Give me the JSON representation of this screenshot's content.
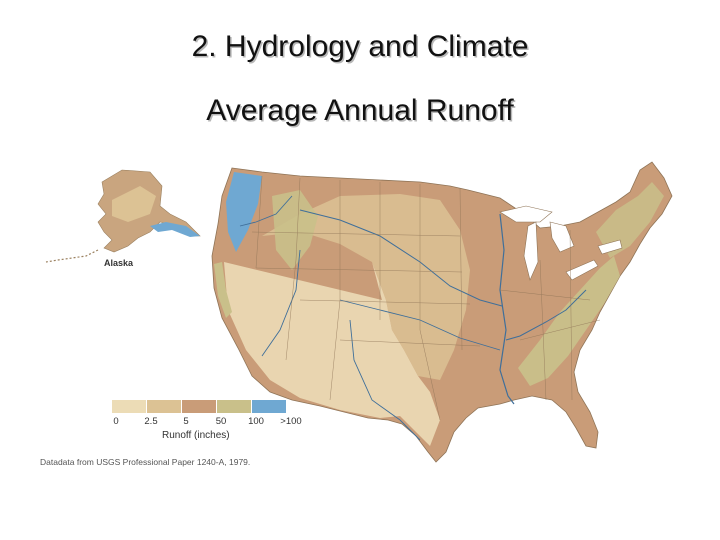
{
  "slide": {
    "title": "2. Hydrology and Climate",
    "subtitle": "Average Annual Runoff"
  },
  "map": {
    "inset_label": "Alaska",
    "source": "Datadata from USGS Professional Paper 1240-A, 1979.",
    "legend": {
      "title": "Runoff (inches)",
      "classes": [
        {
          "color": "#ecdcb6"
        },
        {
          "color": "#dcc294"
        },
        {
          "color": "#c99c78"
        },
        {
          "color": "#c9c08a"
        },
        {
          "color": "#6fa8d2"
        }
      ],
      "ticks": [
        "0",
        "2.5",
        "5",
        "50",
        "100",
        ">100"
      ]
    },
    "colors": {
      "background": "#ffffff",
      "dry": "#ecdcb6",
      "low": "#dcc294",
      "moderate": "#c99c78",
      "high": "#c9c08a",
      "very_high": "#6fa8d2",
      "river": "#3f6f9a",
      "lake": "#ffffff"
    }
  }
}
